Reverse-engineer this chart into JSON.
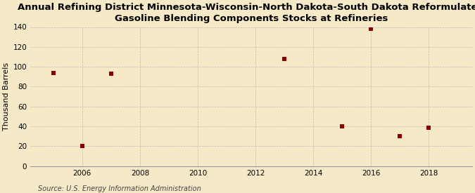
{
  "title": "Annual Refining District Minnesota-Wisconsin-North Dakota-South Dakota Reformulated\nGasoline Blending Components Stocks at Refineries",
  "ylabel": "Thousand Barrels",
  "source": "Source: U.S. Energy Information Administration",
  "background_color": "#f5e9c8",
  "plot_bg_color": "#f5e9c8",
  "data_x": [
    2005,
    2006,
    2007,
    2013,
    2015,
    2016,
    2017,
    2018
  ],
  "data_y": [
    94,
    20,
    93,
    108,
    40,
    138,
    30,
    39
  ],
  "marker_color": "#8b0000",
  "marker_size": 4,
  "xlim": [
    2004.2,
    2019.5
  ],
  "ylim": [
    0,
    140
  ],
  "xticks": [
    2006,
    2008,
    2010,
    2012,
    2014,
    2016,
    2018
  ],
  "yticks": [
    0,
    20,
    40,
    60,
    80,
    100,
    120,
    140
  ],
  "grid_color": "#bbbbbb",
  "title_fontsize": 9.5,
  "label_fontsize": 8,
  "tick_fontsize": 7.5,
  "source_fontsize": 7
}
